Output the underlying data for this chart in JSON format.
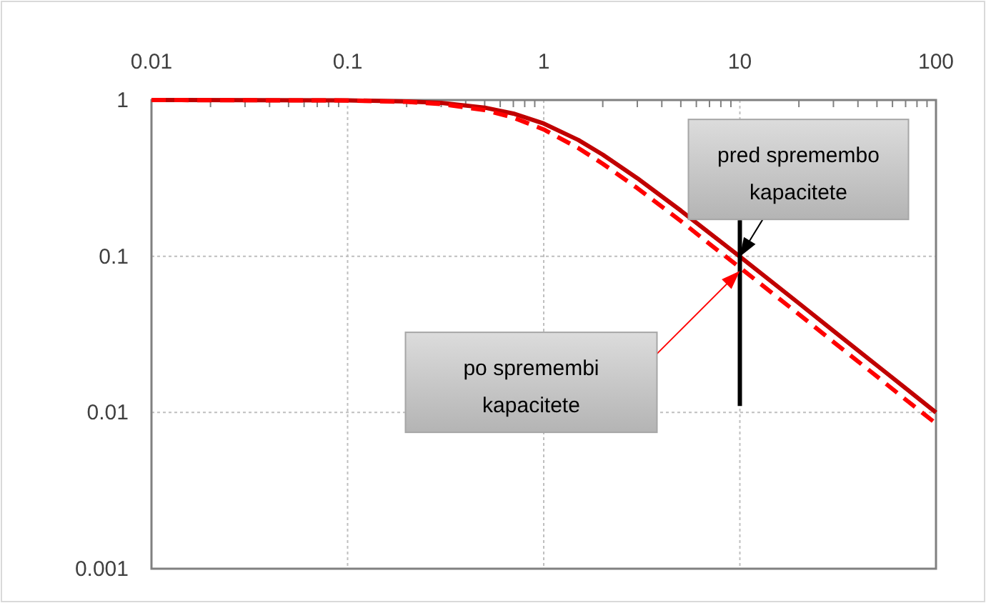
{
  "chart_data": {
    "type": "line",
    "log": "xy",
    "grid": true,
    "xlim": [
      0.01,
      100
    ],
    "ylim": [
      0.001,
      1
    ],
    "xticks": [
      0.01,
      {
        "value": 0.02,
        "label": null
      },
      {
        "value": 0.03,
        "label": null
      },
      {
        "value": 0.04,
        "label": null
      },
      {
        "value": 0.05,
        "label": null
      },
      {
        "value": 0.06,
        "label": null
      },
      {
        "value": 0.07,
        "label": null
      },
      {
        "value": 0.08,
        "label": null
      },
      {
        "value": 0.09,
        "label": null
      },
      0.1,
      {
        "value": 0.2,
        "label": null
      },
      {
        "value": 0.3,
        "label": null
      },
      {
        "value": 0.4,
        "label": null
      },
      {
        "value": 0.5,
        "label": null
      },
      {
        "value": 0.6,
        "label": null
      },
      {
        "value": 0.7,
        "label": null
      },
      {
        "value": 0.8,
        "label": null
      },
      {
        "value": 0.9,
        "label": null
      },
      1,
      {
        "value": 2,
        "label": null
      },
      {
        "value": 3,
        "label": null
      },
      {
        "value": 4,
        "label": null
      },
      {
        "value": 5,
        "label": null
      },
      {
        "value": 6,
        "label": null
      },
      {
        "value": 7,
        "label": null
      },
      {
        "value": 8,
        "label": null
      },
      {
        "value": 9,
        "label": null
      },
      10,
      {
        "value": 20,
        "label": null
      },
      {
        "value": 30,
        "label": null
      },
      {
        "value": 40,
        "label": null
      },
      {
        "value": 50,
        "label": null
      },
      {
        "value": 60,
        "label": null
      },
      {
        "value": 70,
        "label": null
      },
      {
        "value": 80,
        "label": null
      },
      {
        "value": 90,
        "label": null
      },
      100
    ],
    "yticks": [
      0.001,
      0.01,
      0.1,
      1
    ],
    "x": [
      0.01,
      0.1,
      0.2,
      0.3,
      0.5,
      0.7,
      1,
      1.5,
      2,
      3,
      5,
      7,
      10,
      20,
      30,
      50,
      70,
      100
    ],
    "series": [
      {
        "color": "#c00000",
        "line_style": "solid",
        "values": [
          1,
          0.995,
          0.98,
          0.958,
          0.894,
          0.819,
          0.707,
          0.555,
          0.447,
          0.316,
          0.196,
          0.141,
          0.0995,
          0.05,
          0.0333,
          0.02,
          0.0143,
          0.01
        ]
      },
      {
        "color": "#ff0000",
        "line_style": "dashed",
        "values": [
          1,
          0.993,
          0.973,
          0.943,
          0.862,
          0.772,
          0.648,
          0.493,
          0.391,
          0.273,
          0.168,
          0.12,
          0.0847,
          0.0425,
          0.0283,
          0.017,
          0.0121,
          0.0085
        ]
      },
      {
        "color": "#000000",
        "line_style": "solid",
        "x": [
          10,
          10
        ],
        "values": [
          0.011,
          0.17
        ]
      }
    ],
    "annotations": [
      {
        "text": "pred spremembo kapacitete",
        "x": 10,
        "y": 0.0995
      },
      "po spremembi kapacitete"
    ]
  }
}
